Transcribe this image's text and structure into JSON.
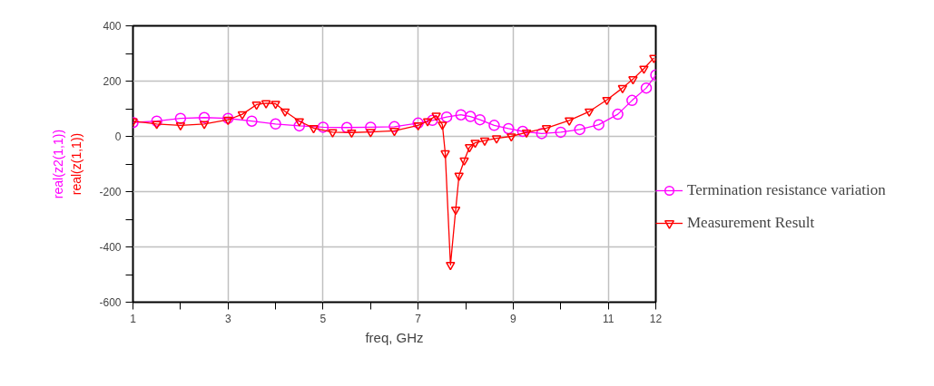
{
  "chart_data": {
    "type": "line",
    "xlabel": "freq, GHz",
    "ylabel": "real(z2(1,1))",
    "annotations": [
      "real(z(1,1))"
    ],
    "xlim": [
      1,
      12
    ],
    "ylim": [
      -600,
      400
    ],
    "xticks": [
      1,
      {
        "value": 2,
        "label": null
      },
      3,
      {
        "value": 4,
        "label": null
      },
      5,
      {
        "value": 6,
        "label": null
      },
      7,
      {
        "value": 8,
        "label": null
      },
      9,
      {
        "value": 10,
        "label": null
      },
      11,
      12
    ],
    "yticks": [
      -600,
      {
        "value": -500,
        "label": null
      },
      -400,
      {
        "value": -300,
        "label": null
      },
      -200,
      {
        "value": -100,
        "label": null
      },
      0,
      {
        "value": 100,
        "label": null
      },
      200,
      {
        "value": 300,
        "label": null
      },
      400
    ],
    "grid": true,
    "legend": "right",
    "line_style": "solid",
    "series": [
      {
        "name": "Termination resistance variation",
        "color": "#ff00ff",
        "marker": "circle",
        "x": [
          1,
          1.5,
          2,
          2.5,
          3,
          3.5,
          4,
          4.5,
          5,
          5.5,
          6,
          6.5,
          7,
          7.3,
          7.6,
          7.9,
          8.1,
          8.3,
          8.6,
          8.9,
          9.2,
          9.6,
          10,
          10.4,
          10.8,
          11.2,
          11.5,
          11.8,
          12
        ],
        "values": [
          50,
          55,
          65,
          68,
          65,
          55,
          45,
          38,
          33,
          32,
          33,
          35,
          48,
          58,
          70,
          78,
          72,
          60,
          40,
          28,
          18,
          10,
          15,
          25,
          42,
          80,
          130,
          175,
          222
        ]
      },
      {
        "name": "Measurement Result",
        "color": "#ff0000",
        "marker": "triangle",
        "x": [
          1,
          1.5,
          2,
          2.5,
          3,
          3.3,
          3.6,
          3.8,
          4.0,
          4.2,
          4.5,
          4.8,
          5.2,
          5.6,
          6,
          6.5,
          7,
          7.2,
          7.38,
          7.51,
          7.57,
          7.68,
          7.79,
          7.86,
          7.97,
          8.08,
          8.2,
          8.4,
          8.65,
          8.96,
          9.28,
          9.7,
          10.18,
          10.6,
          10.97,
          11.3,
          11.52,
          11.75,
          11.96
        ],
        "values": [
          55,
          45,
          40,
          45,
          60,
          80,
          115,
          120,
          118,
          90,
          55,
          30,
          15,
          14,
          16,
          20,
          40,
          55,
          75,
          42,
          -61,
          -465,
          -265,
          -142,
          -87,
          -39,
          -23,
          -15,
          -7,
          0,
          14,
          30,
          58,
          90,
          132,
          175,
          207,
          245,
          284
        ]
      }
    ]
  }
}
